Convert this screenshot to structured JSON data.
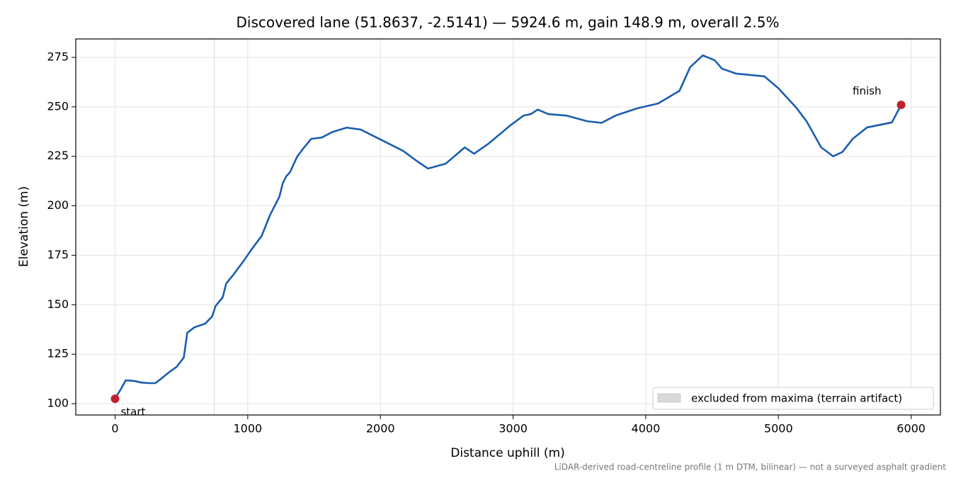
{
  "chart_data": {
    "type": "line",
    "title": "Discovered lane (51.8637, -2.5141) — 5924.6 m, gain 148.9 m, overall 2.5%",
    "x_label": "Distance uphill (m)",
    "y_label": "Elevation (m)",
    "note": "LiDAR-derived road-centreline profile (1 m DTM, bilinear) — not a surveyed asphalt gradient",
    "color": "#1c5db0",
    "x": [
      0,
      48,
      80,
      144,
      197,
      251,
      304,
      358,
      411,
      464,
      518,
      544,
      598,
      678,
      731,
      758,
      811,
      838,
      891,
      971,
      1025,
      1105,
      1169,
      1238,
      1265,
      1291,
      1318,
      1372,
      1425,
      1478,
      1558,
      1638,
      1745,
      1852,
      2012,
      2172,
      2279,
      2359,
      2492,
      2636,
      2706,
      2813,
      2973,
      3079,
      3133,
      3186,
      3266,
      3400,
      3560,
      3667,
      3773,
      3933,
      4093,
      4254,
      4334,
      4430,
      4520,
      4574,
      4680,
      4894,
      5001,
      5134,
      5214,
      5321,
      5412,
      5481,
      5561,
      5668,
      5855,
      5924.6
    ],
    "values": [
      102.5,
      107.9,
      111.8,
      111.5,
      110.7,
      110.4,
      110.4,
      113.2,
      116.1,
      118.6,
      123.3,
      135.8,
      138.6,
      140.4,
      144.0,
      149.4,
      153.7,
      160.8,
      165.1,
      172.3,
      177.6,
      184.8,
      195.5,
      204.5,
      211.6,
      215.0,
      216.9,
      224.8,
      229.5,
      233.8,
      234.5,
      237.3,
      239.5,
      238.5,
      233.1,
      227.7,
      222.4,
      218.8,
      221.3,
      229.5,
      226.3,
      231.3,
      240.3,
      245.6,
      246.3,
      248.6,
      246.3,
      245.6,
      242.7,
      241.9,
      245.6,
      249.2,
      251.7,
      258.1,
      270.0,
      276.0,
      273.5,
      269.3,
      266.8,
      265.4,
      259.3,
      249.6,
      242.5,
      229.6,
      225.0,
      227.1,
      233.9,
      239.6,
      242.1,
      251.0
    ],
    "markers": [
      {
        "label": "start",
        "x": 0,
        "y": 102.5
      },
      {
        "label": "finish",
        "x": 5924.6,
        "y": 251.0
      }
    ],
    "marker_color": "#c21f2c",
    "excluded": {
      "label": "excluded from maxima (terrain artifact)",
      "span": [
        745,
        752
      ],
      "color": "#d9d9d9"
    },
    "xlim": [
      -296.2,
      6220.8
    ],
    "ylim": [
      94.3,
      284.3
    ],
    "xticks": [
      0,
      1000,
      2000,
      3000,
      4000,
      5000,
      6000
    ],
    "yticks": [
      100,
      125,
      150,
      175,
      200,
      225,
      250,
      275
    ],
    "grid": true,
    "legend": "lower right"
  }
}
